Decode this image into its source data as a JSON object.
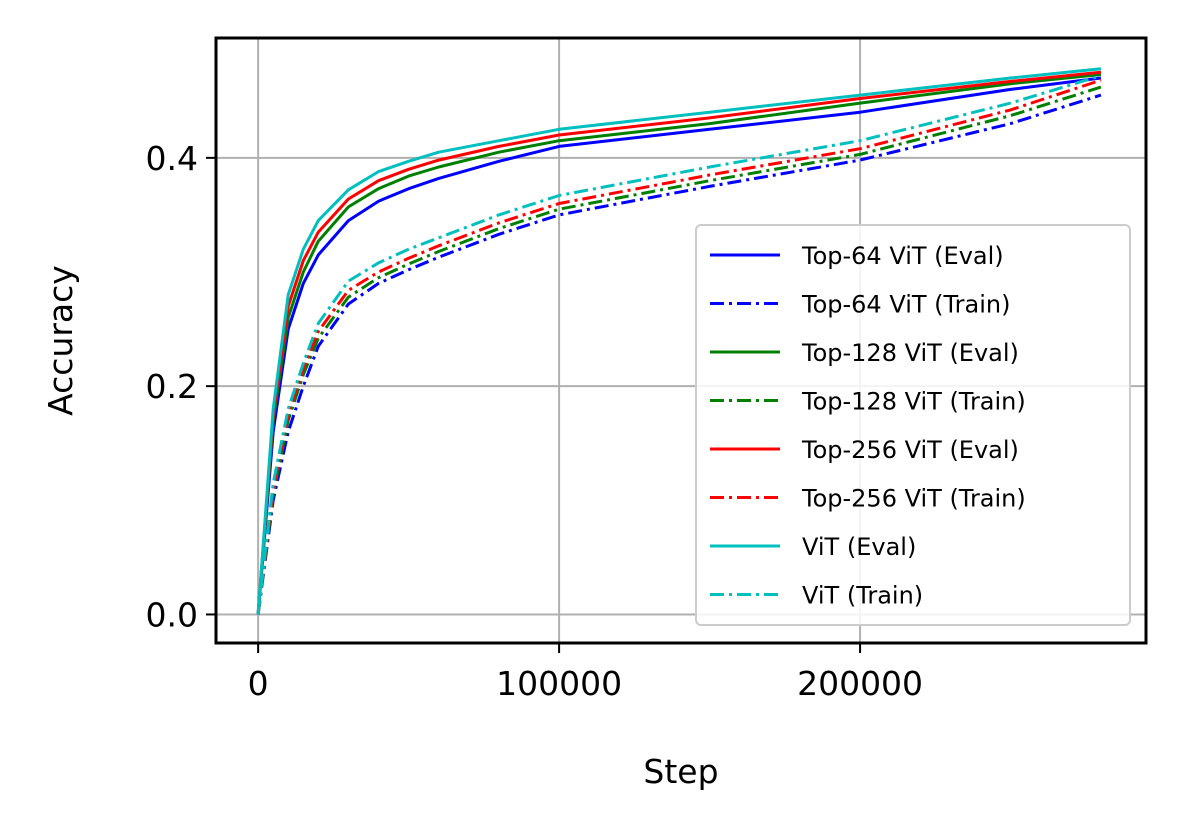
{
  "chart_data": {
    "type": "line",
    "title": "",
    "xlabel": "Step",
    "ylabel": "Accuracy",
    "xlim": [
      -14000,
      295000
    ],
    "ylim": [
      -0.025,
      0.505
    ],
    "x_ticks": [
      0,
      100000,
      200000
    ],
    "x_tick_labels": [
      "0",
      "100000",
      "200000"
    ],
    "y_ticks": [
      0.0,
      0.2,
      0.4
    ],
    "y_tick_labels": [
      "0.0",
      "0.2",
      "0.4"
    ],
    "grid": true,
    "legend_position": "lower-right",
    "series": [
      {
        "name": "Top-64 ViT (Eval)",
        "color": "#0000ff",
        "style": "solid",
        "x": [
          0,
          5000,
          10000,
          15000,
          20000,
          30000,
          40000,
          50000,
          60000,
          80000,
          100000,
          150000,
          200000,
          250000,
          280000
        ],
        "y": [
          0.0,
          0.16,
          0.25,
          0.29,
          0.315,
          0.345,
          0.362,
          0.373,
          0.382,
          0.397,
          0.41,
          0.425,
          0.44,
          0.46,
          0.47
        ]
      },
      {
        "name": "Top-64 ViT (Train)",
        "color": "#0000ff",
        "style": "dashdot",
        "x": [
          0,
          5000,
          10000,
          15000,
          20000,
          30000,
          40000,
          50000,
          60000,
          80000,
          100000,
          150000,
          200000,
          250000,
          280000
        ],
        "y": [
          0.0,
          0.1,
          0.16,
          0.2,
          0.235,
          0.272,
          0.29,
          0.302,
          0.313,
          0.333,
          0.35,
          0.375,
          0.398,
          0.43,
          0.455
        ]
      },
      {
        "name": "Top-128 ViT (Eval)",
        "color": "#008000",
        "style": "solid",
        "x": [
          0,
          5000,
          10000,
          15000,
          20000,
          30000,
          40000,
          50000,
          60000,
          80000,
          100000,
          150000,
          200000,
          250000,
          280000
        ],
        "y": [
          0.0,
          0.17,
          0.26,
          0.3,
          0.327,
          0.357,
          0.373,
          0.384,
          0.392,
          0.405,
          0.415,
          0.43,
          0.448,
          0.465,
          0.473
        ]
      },
      {
        "name": "Top-128 ViT (Train)",
        "color": "#008000",
        "style": "dashdot",
        "x": [
          0,
          5000,
          10000,
          15000,
          20000,
          30000,
          40000,
          50000,
          60000,
          80000,
          100000,
          150000,
          200000,
          250000,
          280000
        ],
        "y": [
          0.0,
          0.105,
          0.17,
          0.21,
          0.242,
          0.278,
          0.295,
          0.307,
          0.318,
          0.338,
          0.355,
          0.38,
          0.403,
          0.437,
          0.462
        ]
      },
      {
        "name": "Top-256 ViT (Eval)",
        "color": "#ff0000",
        "style": "solid",
        "x": [
          0,
          5000,
          10000,
          15000,
          20000,
          30000,
          40000,
          50000,
          60000,
          80000,
          100000,
          150000,
          200000,
          250000,
          280000
        ],
        "y": [
          0.0,
          0.175,
          0.27,
          0.31,
          0.335,
          0.364,
          0.38,
          0.39,
          0.398,
          0.41,
          0.42,
          0.435,
          0.452,
          0.467,
          0.475
        ]
      },
      {
        "name": "Top-256 ViT (Train)",
        "color": "#ff0000",
        "style": "dashdot",
        "x": [
          0,
          5000,
          10000,
          15000,
          20000,
          30000,
          40000,
          50000,
          60000,
          80000,
          100000,
          150000,
          200000,
          250000,
          280000
        ],
        "y": [
          0.0,
          0.11,
          0.175,
          0.215,
          0.248,
          0.284,
          0.3,
          0.312,
          0.323,
          0.343,
          0.36,
          0.385,
          0.408,
          0.442,
          0.468
        ]
      },
      {
        "name": "ViT (Eval)",
        "color": "#00bfbf",
        "style": "solid",
        "x": [
          0,
          5000,
          10000,
          15000,
          20000,
          30000,
          40000,
          50000,
          60000,
          80000,
          100000,
          150000,
          200000,
          250000,
          280000
        ],
        "y": [
          0.0,
          0.18,
          0.28,
          0.32,
          0.345,
          0.372,
          0.388,
          0.397,
          0.405,
          0.415,
          0.425,
          0.44,
          0.455,
          0.47,
          0.478
        ]
      },
      {
        "name": "ViT (Train)",
        "color": "#00bfbf",
        "style": "dashdot",
        "x": [
          0,
          5000,
          10000,
          15000,
          20000,
          30000,
          40000,
          50000,
          60000,
          80000,
          100000,
          150000,
          200000,
          250000,
          280000
        ],
        "y": [
          0.0,
          0.115,
          0.18,
          0.22,
          0.255,
          0.292,
          0.308,
          0.32,
          0.33,
          0.35,
          0.367,
          0.392,
          0.415,
          0.448,
          0.472
        ]
      }
    ]
  }
}
